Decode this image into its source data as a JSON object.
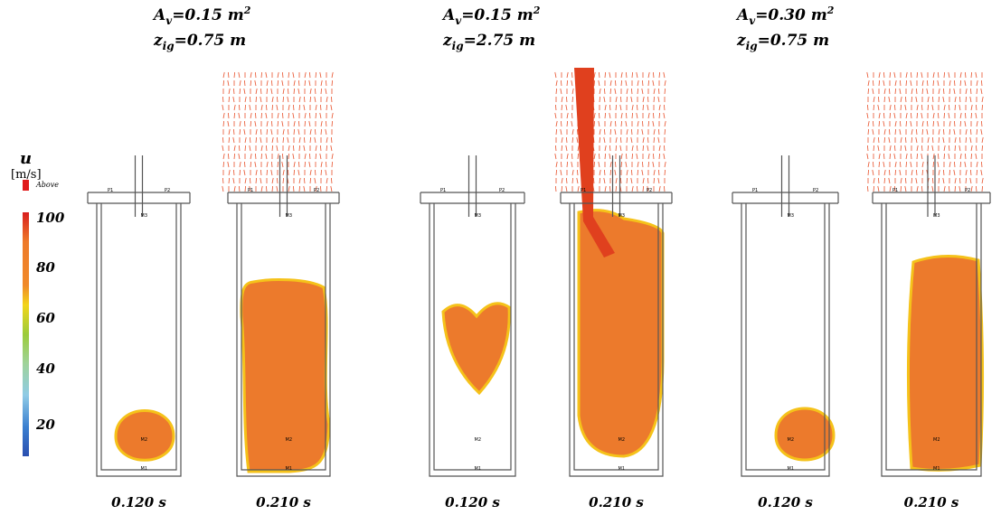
{
  "colorbar": {
    "title": "u",
    "unit": "[m/s]",
    "above": "Above",
    "ticks": [
      "100",
      "80",
      "60",
      "40",
      "20"
    ]
  },
  "sensors": [
    "P1",
    "P2",
    "M3",
    "M2",
    "M1"
  ],
  "groups": [
    {
      "area": {
        "symbol": "A",
        "subscript": "v",
        "value": "=0.15 m",
        "superscript": "2"
      },
      "ignition": {
        "symbol": "z",
        "subscript": "ig",
        "value": "=0.75 m"
      },
      "times": [
        "0.120 s",
        "0.210 s"
      ]
    },
    {
      "area": {
        "symbol": "A",
        "subscript": "v",
        "value": "=0.15 m",
        "superscript": "2"
      },
      "ignition": {
        "symbol": "z",
        "subscript": "ig",
        "value": "=2.75 m"
      },
      "times": [
        "0.120 s",
        "0.210 s"
      ]
    },
    {
      "area": {
        "symbol": "A",
        "subscript": "v",
        "value": "=0.30 m",
        "superscript": "2"
      },
      "ignition": {
        "symbol": "z",
        "subscript": "ig",
        "value": "=0.75 m"
      },
      "times": [
        "0.120 s",
        "0.210 s"
      ]
    }
  ]
}
